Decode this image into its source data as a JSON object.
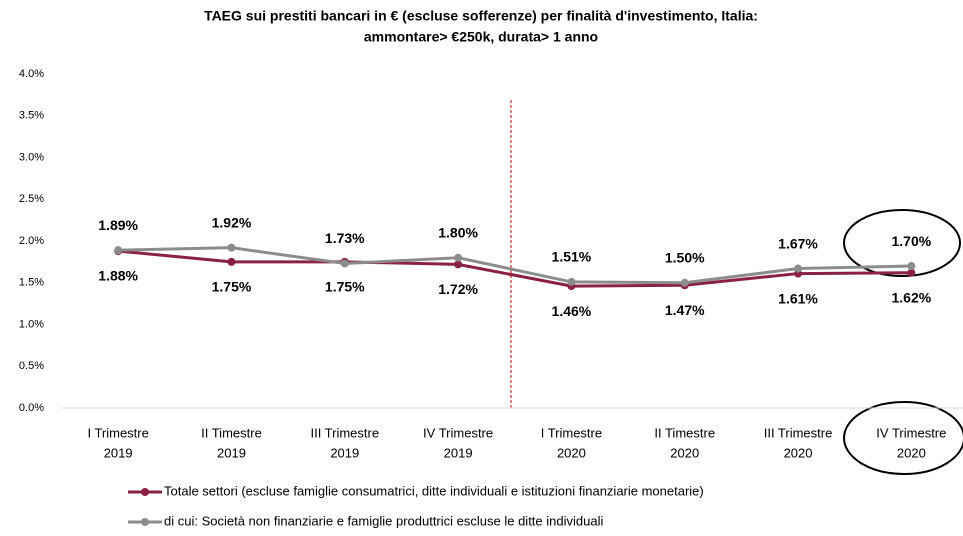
{
  "chart_data": {
    "type": "line",
    "title": [
      "TAEG sui prestiti bancari in € (escluse sofferenze) per finalità d'investimento, Italia:",
      "ammontare> €250k,  durata> 1 anno"
    ],
    "categories": [
      [
        "I Trimestre",
        "2019"
      ],
      [
        "II Timestre",
        "2019"
      ],
      [
        "III Trimestre",
        "2019"
      ],
      [
        "IV Trimestre",
        "2019"
      ],
      [
        "I Trimestre",
        "2020"
      ],
      [
        "II Timestre",
        "2020"
      ],
      [
        "III Trimestre",
        "2020"
      ],
      [
        "IV Trimestre",
        "2020"
      ]
    ],
    "series": [
      {
        "name": "Totale settori (escluse famiglie consumatrici, ditte individuali e istituzioni finanziarie monetarie)",
        "color": "#8b2141",
        "values": [
          1.88,
          1.75,
          1.75,
          1.72,
          1.46,
          1.47,
          1.61,
          1.62
        ],
        "value_labels": [
          "1.88%",
          "1.75%",
          "1.75%",
          "1.72%",
          "1.46%",
          "1.47%",
          "1.61%",
          "1.62%"
        ]
      },
      {
        "name": "di cui: Società non finanziarie e famiglie produttrici escluse le ditte individuali",
        "color": "#8c8c8c",
        "values": [
          1.89,
          1.92,
          1.73,
          1.8,
          1.51,
          1.5,
          1.67,
          1.7
        ],
        "value_labels": [
          "1.89%",
          "1.92%",
          "1.73%",
          "1.80%",
          "1.51%",
          "1.50%",
          "1.67%",
          "1.70%"
        ]
      }
    ],
    "ylim": [
      0,
      4
    ],
    "yticks": [
      {
        "value": 0,
        "label": "0.0%"
      },
      {
        "value": 0.5,
        "label": "0.5%"
      },
      {
        "value": 1,
        "label": "1.0%"
      },
      {
        "value": 1.5,
        "label": "1.5%"
      },
      {
        "value": 2,
        "label": "2.0%"
      },
      {
        "value": 2.5,
        "label": "2.5%"
      },
      {
        "value": 3,
        "label": "3.0%"
      },
      {
        "value": 3.5,
        "label": "3.5%"
      },
      {
        "value": 4,
        "label": "4.0%"
      }
    ],
    "legend": "bottom"
  }
}
